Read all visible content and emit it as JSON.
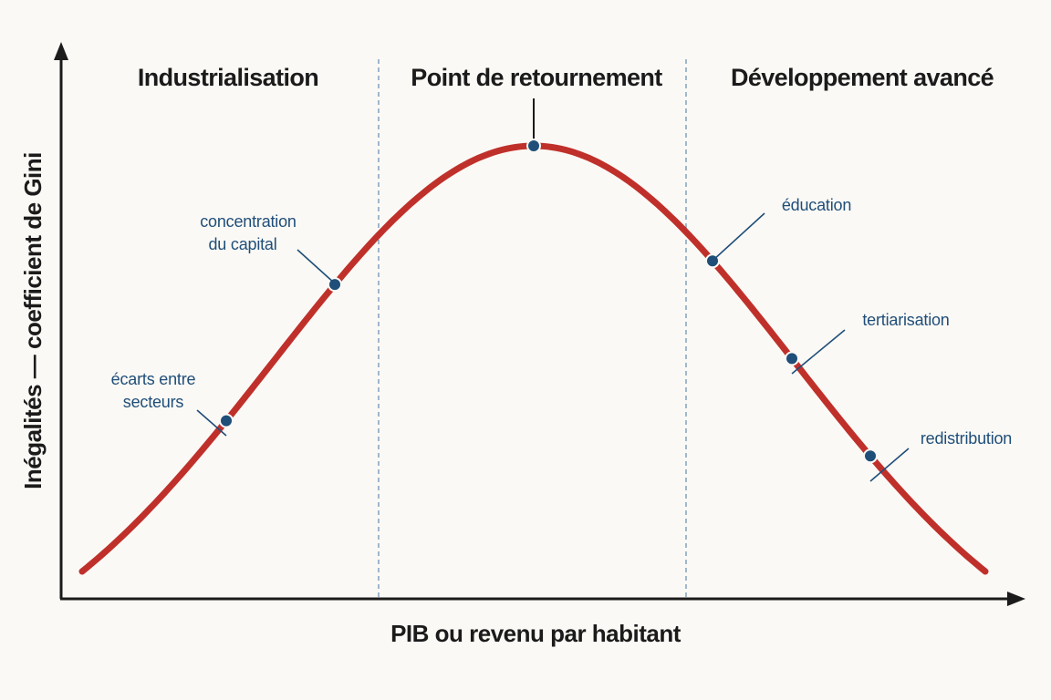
{
  "axes": {
    "x_label": "PIB ou revenu par habitant",
    "y_label": "Inégalités — coefficient de Gini"
  },
  "phases": [
    "Industrialisation",
    "Point de retournement",
    "Développement avancé"
  ],
  "annotations": [
    {
      "lines": [
        "écarts entre",
        "secteurs"
      ]
    },
    {
      "lines": [
        "concentration",
        "du capital"
      ]
    },
    {
      "lines": [
        "éducation"
      ]
    },
    {
      "lines": [
        "tertiarisation"
      ]
    },
    {
      "lines": [
        "redistribution"
      ]
    }
  ]
}
